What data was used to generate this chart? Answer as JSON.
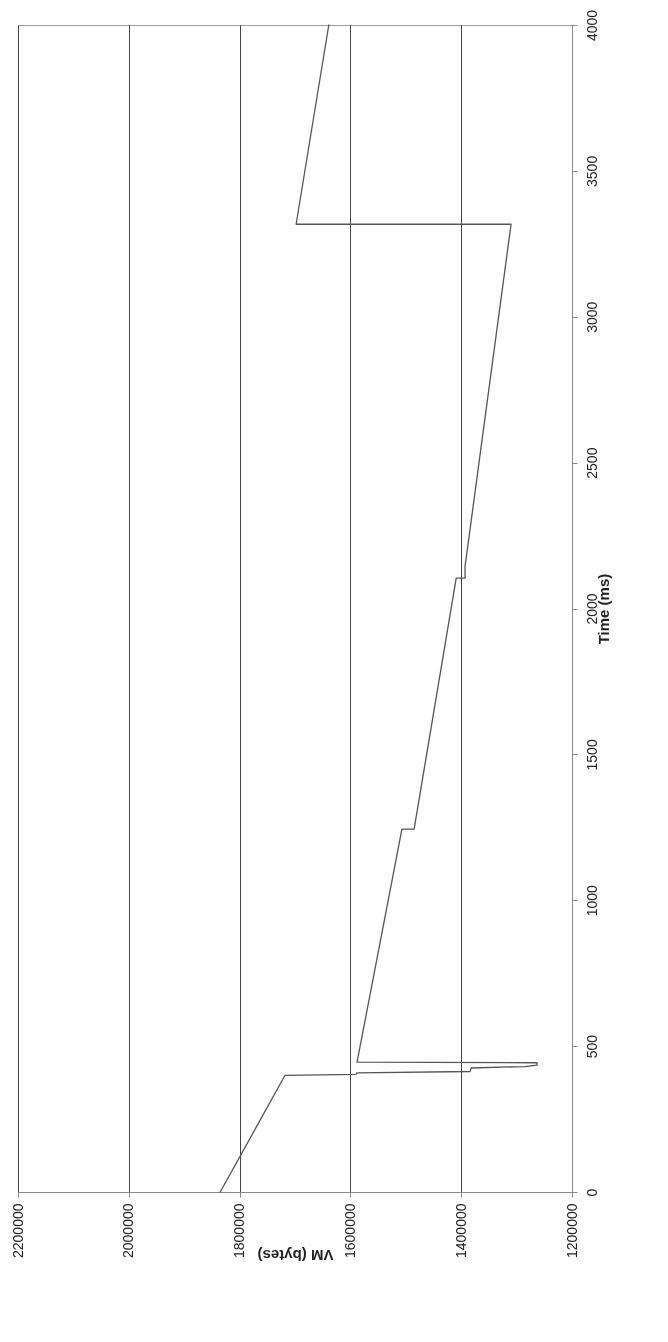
{
  "chart_data": {
    "type": "line",
    "xlabel": "VM (bytes)",
    "ylabel": "Time (ms)",
    "xlim": [
      2200000,
      1200000
    ],
    "xticks": [
      2200000,
      2000000,
      1800000,
      1600000,
      1400000,
      1200000
    ],
    "ylim": [
      0,
      4000
    ],
    "yticks": [
      0,
      500,
      1000,
      1500,
      2000,
      2500,
      3000,
      3500,
      4000
    ],
    "grid": "x",
    "series": [
      {
        "color": "#555555",
        "x": [
          1835000,
          1718000,
          1590000,
          1588000,
          1384000,
          1382000,
          1285000,
          1263000,
          1263000,
          1588000,
          1507000,
          1485000,
          1409000,
          1393000,
          1393000,
          1310000,
          1698000,
          1639000
        ],
        "values": [
          0,
          400,
          403,
          408,
          413,
          425,
          430,
          435,
          443,
          445,
          1244,
          1244,
          2104,
          2104,
          2145,
          3317,
          3317,
          4000
        ]
      }
    ]
  }
}
